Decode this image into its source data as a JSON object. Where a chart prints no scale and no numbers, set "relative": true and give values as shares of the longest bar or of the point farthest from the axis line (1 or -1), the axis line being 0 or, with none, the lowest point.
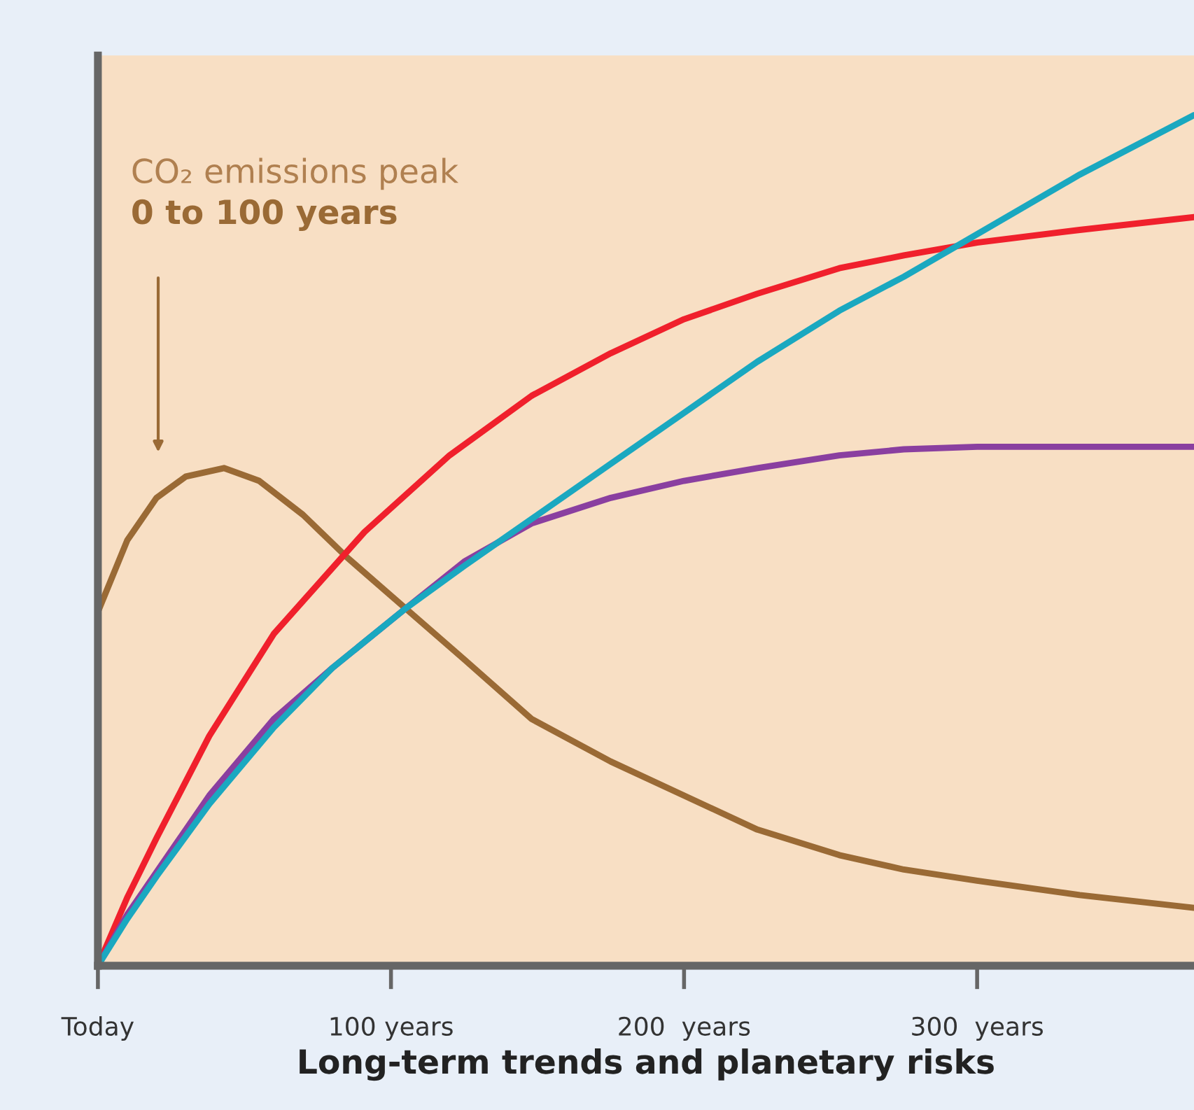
{
  "chart_data": {
    "type": "line",
    "relative": true,
    "xlabel": "Long-term trends and planetary risks",
    "xlim": [
      0,
      374
    ],
    "xticks": [
      {
        "value": 0,
        "label": "Today"
      },
      {
        "value": 100,
        "label": "100 years"
      },
      {
        "value": 200,
        "label": "200  years"
      },
      {
        "value": 300,
        "label": "300  years"
      }
    ],
    "series": [
      {
        "color": "#9a6a35",
        "x": [
          0,
          10,
          20,
          30,
          43,
          55,
          70,
          85,
          100,
          125,
          148,
          175,
          200,
          225,
          253,
          275,
          300,
          335,
          374
        ],
        "values": [
          0.416,
          0.5,
          0.55,
          0.575,
          0.585,
          0.57,
          0.53,
          0.48,
          0.435,
          0.36,
          0.29,
          0.24,
          0.2,
          0.16,
          0.13,
          0.113,
          0.1,
          0.083,
          0.068
        ]
      },
      {
        "color": "#f0202c",
        "x": [
          0,
          10,
          20,
          38,
          60,
          91,
          120,
          148,
          175,
          200,
          225,
          253,
          275,
          300,
          335,
          374
        ],
        "values": [
          0,
          0.08,
          0.15,
          0.27,
          0.39,
          0.51,
          0.6,
          0.67,
          0.72,
          0.76,
          0.79,
          0.82,
          0.835,
          0.85,
          0.865,
          0.88
        ]
      },
      {
        "color": "#8a3fa0",
        "x": [
          0,
          10,
          20,
          38,
          60,
          80,
          105,
          125,
          148,
          175,
          200,
          225,
          253,
          275,
          300,
          335,
          374
        ],
        "values": [
          0,
          0.06,
          0.11,
          0.2,
          0.29,
          0.35,
          0.42,
          0.475,
          0.52,
          0.55,
          0.57,
          0.585,
          0.6,
          0.607,
          0.61,
          0.61,
          0.61
        ]
      },
      {
        "color": "#1aa8c0",
        "x": [
          0,
          10,
          20,
          38,
          60,
          80,
          105,
          125,
          150,
          175,
          200,
          225,
          253,
          275,
          300,
          335,
          374
        ],
        "values": [
          0,
          0.055,
          0.105,
          0.19,
          0.28,
          0.35,
          0.42,
          0.47,
          0.53,
          0.59,
          0.65,
          0.71,
          0.77,
          0.81,
          0.86,
          0.93,
          1
        ]
      }
    ],
    "annotations": [
      "CO₂ emissions peak",
      "0 to 100 years"
    ],
    "grid": false,
    "legend": false
  }
}
